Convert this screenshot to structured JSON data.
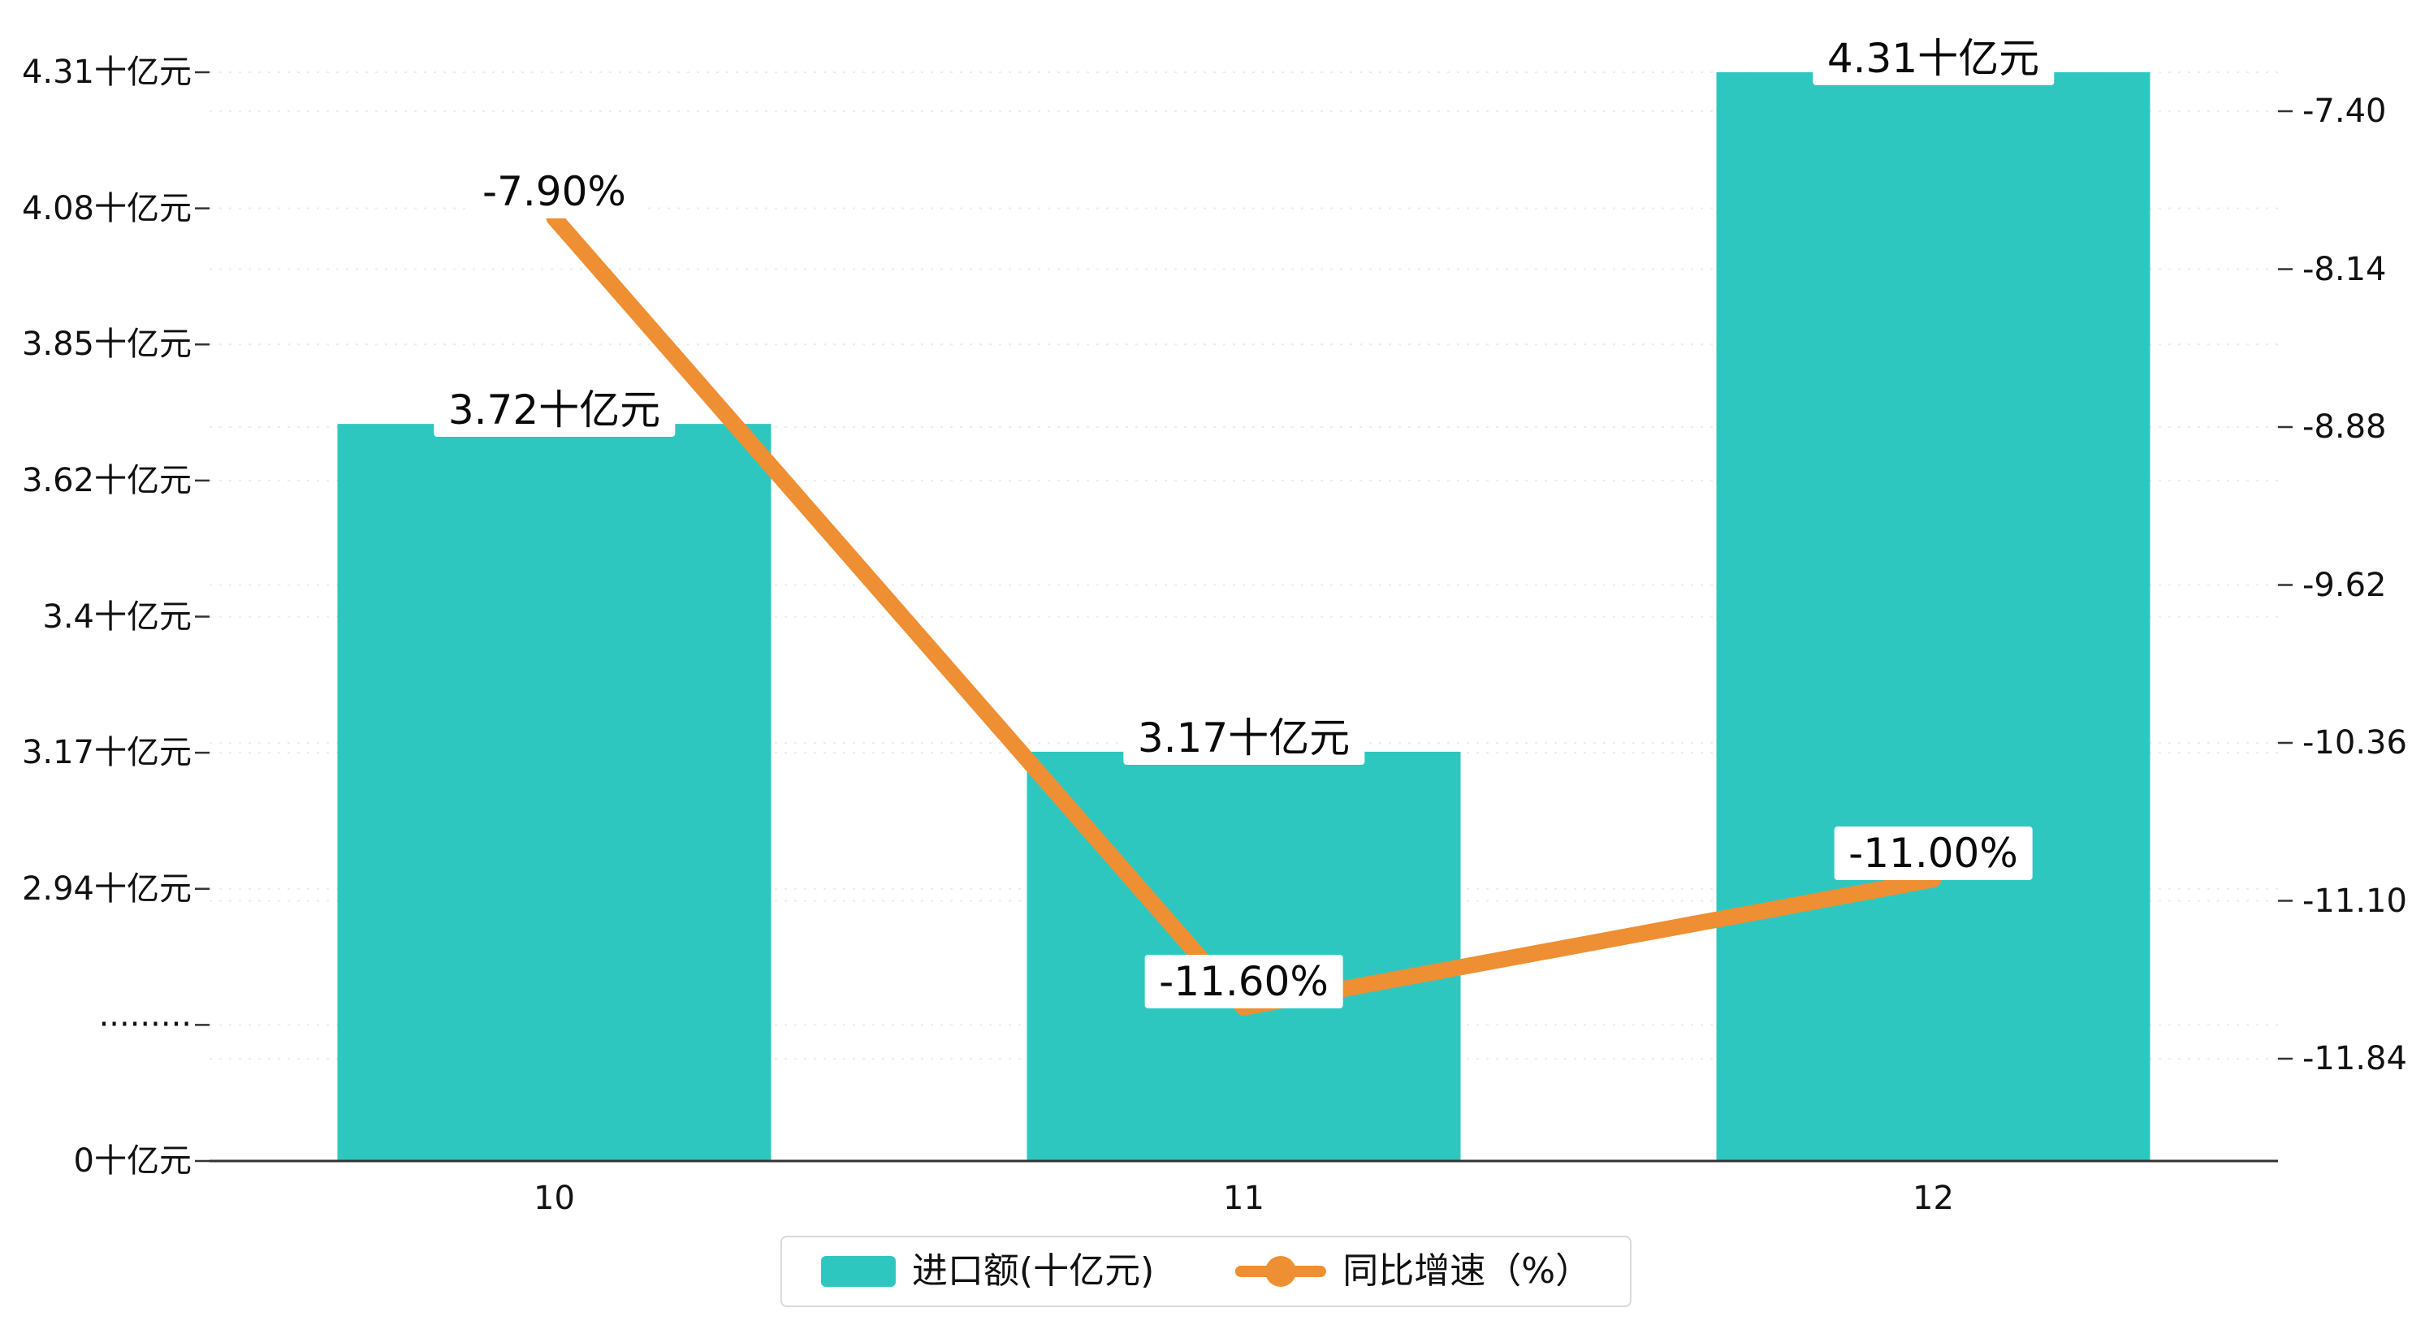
{
  "colors": {
    "bar": "#2EC7C0",
    "line": "#EE8F33",
    "grid": "#ECECEC",
    "axis": "#333333",
    "text": "#111111",
    "label_bg": "#FFFFFF",
    "legend_border": "#D9D9D9"
  },
  "chart_data": {
    "type": "bar",
    "title": "",
    "categories": [
      "10",
      "11",
      "12"
    ],
    "series": [
      {
        "name": "进口额(十亿元)",
        "type": "bar",
        "axis": "left",
        "values": [
          3.72,
          3.17,
          4.31
        ],
        "data_labels": [
          "3.72十亿元",
          "3.17十亿元",
          "4.31十亿元"
        ]
      },
      {
        "name": "同比增速（%）",
        "type": "line",
        "axis": "right",
        "values": [
          -7.9,
          -11.6,
          -11.0
        ],
        "data_labels": [
          "-7.90%",
          "-11.60%",
          "-11.00%"
        ]
      }
    ],
    "left_axis": {
      "tick_labels": [
        "4.31十亿元",
        "4.08十亿元",
        "3.85十亿元",
        "3.62十亿元",
        "3.4十亿元",
        "3.17十亿元",
        "2.94十亿元",
        "·········",
        "0十亿元"
      ],
      "tick_values": [
        4.31,
        4.08,
        3.85,
        3.62,
        3.4,
        3.17,
        2.94,
        null,
        0
      ],
      "broken": true
    },
    "right_axis": {
      "tick_labels": [
        "-7.40",
        "-8.14",
        "-8.88",
        "-9.62",
        "-10.36",
        "-11.10",
        "-11.84"
      ],
      "tick_values": [
        -7.4,
        -8.14,
        -8.88,
        -9.62,
        -10.36,
        -11.1,
        -11.84
      ]
    },
    "legend": [
      {
        "label": "进口额(十亿元)",
        "marker": "bar"
      },
      {
        "label": "同比增速（%）",
        "marker": "line"
      }
    ],
    "legend_position": "bottom",
    "grid": true
  }
}
